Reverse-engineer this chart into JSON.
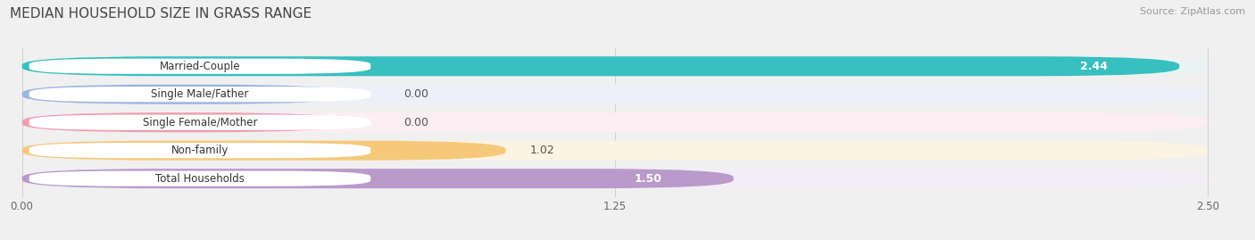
{
  "title": "MEDIAN HOUSEHOLD SIZE IN GRASS RANGE",
  "source": "Source: ZipAtlas.com",
  "categories": [
    "Married-Couple",
    "Single Male/Father",
    "Single Female/Mother",
    "Non-family",
    "Total Households"
  ],
  "values": [
    2.44,
    0.0,
    0.0,
    1.02,
    1.5
  ],
  "bar_colors": [
    "#38bfc0",
    "#9ab3e0",
    "#f09db0",
    "#f5c87a",
    "#b99aca"
  ],
  "bar_bg_colors": [
    "#e8f4f4",
    "#edf0f8",
    "#fceef3",
    "#fdf3e2",
    "#f2edf7"
  ],
  "value_label_colors": [
    "white",
    "#777777",
    "#777777",
    "#777777",
    "white"
  ],
  "value_label_bg": [
    true,
    false,
    false,
    false,
    true
  ],
  "xlim": [
    0.0,
    2.5
  ],
  "xmax": 2.5,
  "xticks": [
    0.0,
    1.25,
    2.5
  ],
  "xtick_labels": [
    "0.00",
    "1.25",
    "2.50"
  ],
  "title_fontsize": 11,
  "source_fontsize": 8,
  "value_fontsize": 9,
  "label_fontsize": 8.5,
  "background_color": "#f0f0f0"
}
